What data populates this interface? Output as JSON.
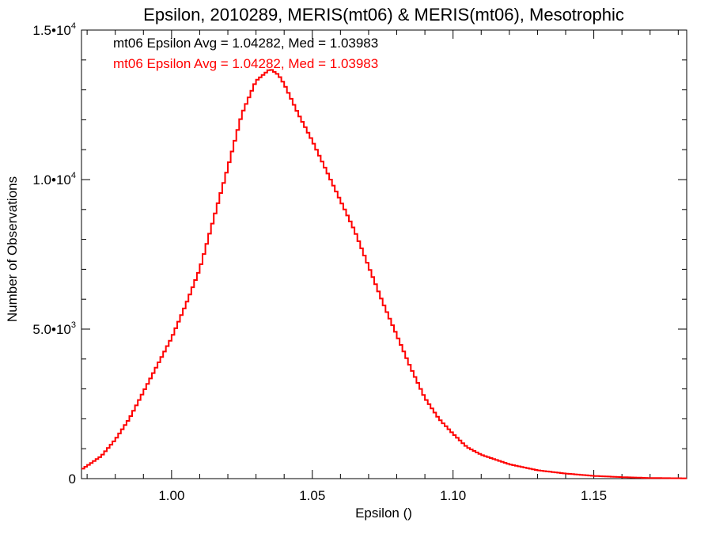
{
  "chart_data": {
    "type": "line",
    "step": true,
    "title": "Epsilon, 2010289, MERIS(mt06) & MERIS(mt06), Mesotrophic",
    "xlabel": "Epsilon ()",
    "ylabel": "Number of Observations",
    "xlim": [
      0.968,
      1.183
    ],
    "ylim": [
      0,
      15000
    ],
    "grid": false,
    "x_ticks": [
      {
        "value": 1.0,
        "label": "1.00"
      },
      {
        "value": 1.05,
        "label": "1.05"
      },
      {
        "value": 1.1,
        "label": "1.10"
      },
      {
        "value": 1.15,
        "label": "1.15"
      }
    ],
    "y_ticks": [
      {
        "value": 0,
        "mant": "0",
        "exp": ""
      },
      {
        "value": 5000,
        "mant": "5.0•10",
        "exp": "3"
      },
      {
        "value": 10000,
        "mant": "1.0•10",
        "exp": "4"
      },
      {
        "value": 15000,
        "mant": "1.5•10",
        "exp": "4"
      }
    ],
    "annotations": [
      {
        "text": "mt06 Epsilon Avg = 1.04282, Med = 1.03983",
        "color": "#000000"
      },
      {
        "text": "mt06 Epsilon Avg = 1.04282, Med = 1.03983",
        "color": "#ff0000"
      }
    ],
    "series": [
      {
        "color": "#ff0000",
        "x": [
          0.968,
          0.975,
          0.98,
          0.985,
          0.99,
          0.995,
          1.0,
          1.005,
          1.01,
          1.015,
          1.02,
          1.025,
          1.03,
          1.035,
          1.038,
          1.04,
          1.045,
          1.05,
          1.055,
          1.06,
          1.065,
          1.07,
          1.075,
          1.08,
          1.085,
          1.09,
          1.095,
          1.1,
          1.105,
          1.11,
          1.12,
          1.13,
          1.14,
          1.15,
          1.16,
          1.17,
          1.183
        ],
        "y": [
          300,
          750,
          1300,
          2000,
          2900,
          3800,
          4700,
          5800,
          7000,
          8700,
          10400,
          12200,
          13300,
          13700,
          13500,
          13200,
          12200,
          11300,
          10300,
          9300,
          8300,
          7100,
          5900,
          4800,
          3700,
          2700,
          2000,
          1500,
          1050,
          800,
          480,
          280,
          170,
          90,
          50,
          20,
          10
        ]
      }
    ]
  }
}
